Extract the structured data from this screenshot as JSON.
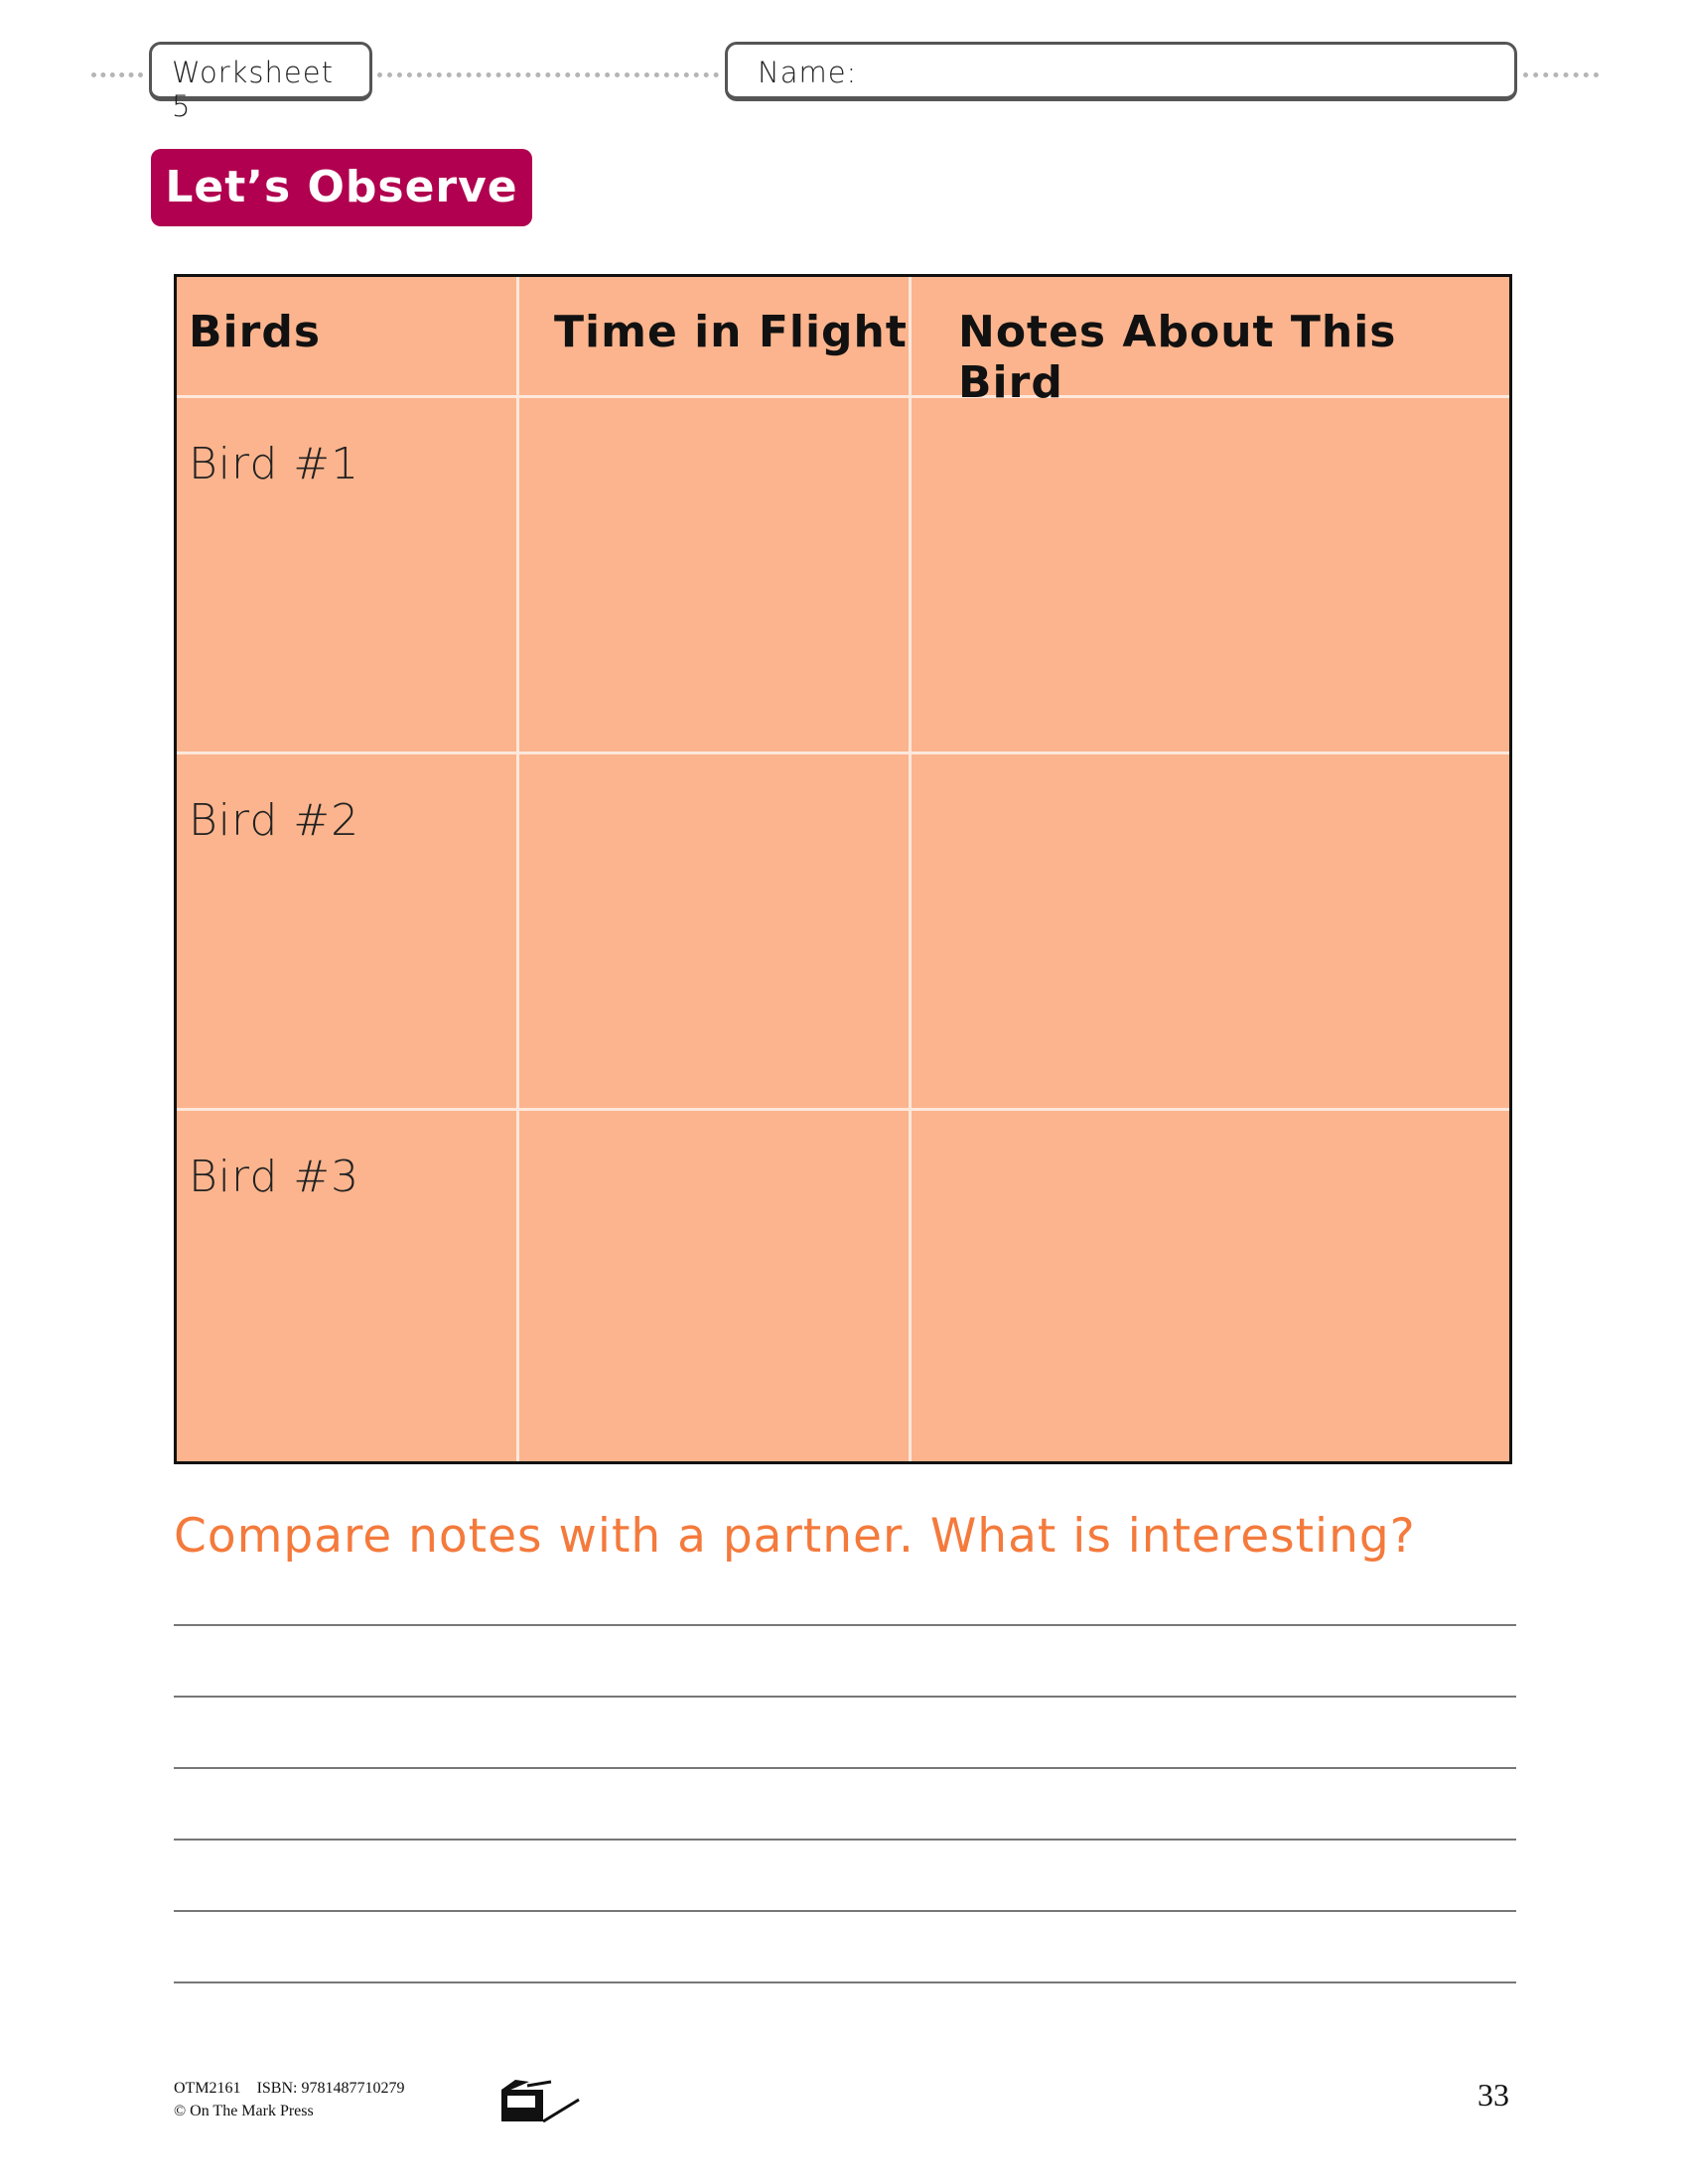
{
  "header": {
    "worksheet_label": "Worksheet 5",
    "name_label": "Name:"
  },
  "section_title": "Let’s Observe",
  "table": {
    "headers": [
      "Birds",
      "Time in Flight",
      "Notes About This Bird"
    ],
    "rows": [
      {
        "label": "Bird #1"
      },
      {
        "label": "Bird #2"
      },
      {
        "label": "Bird #3"
      }
    ],
    "fill_color": "#fbb48d"
  },
  "prompt": "Compare notes with a partner. What is interesting?",
  "footer": {
    "code": "OTM2161",
    "isbn": "ISBN: 9781487710279",
    "copyright": "© On The Mark Press",
    "page_number": "33"
  },
  "colors": {
    "badge": "#b0004f",
    "prompt": "#f47a3c"
  }
}
